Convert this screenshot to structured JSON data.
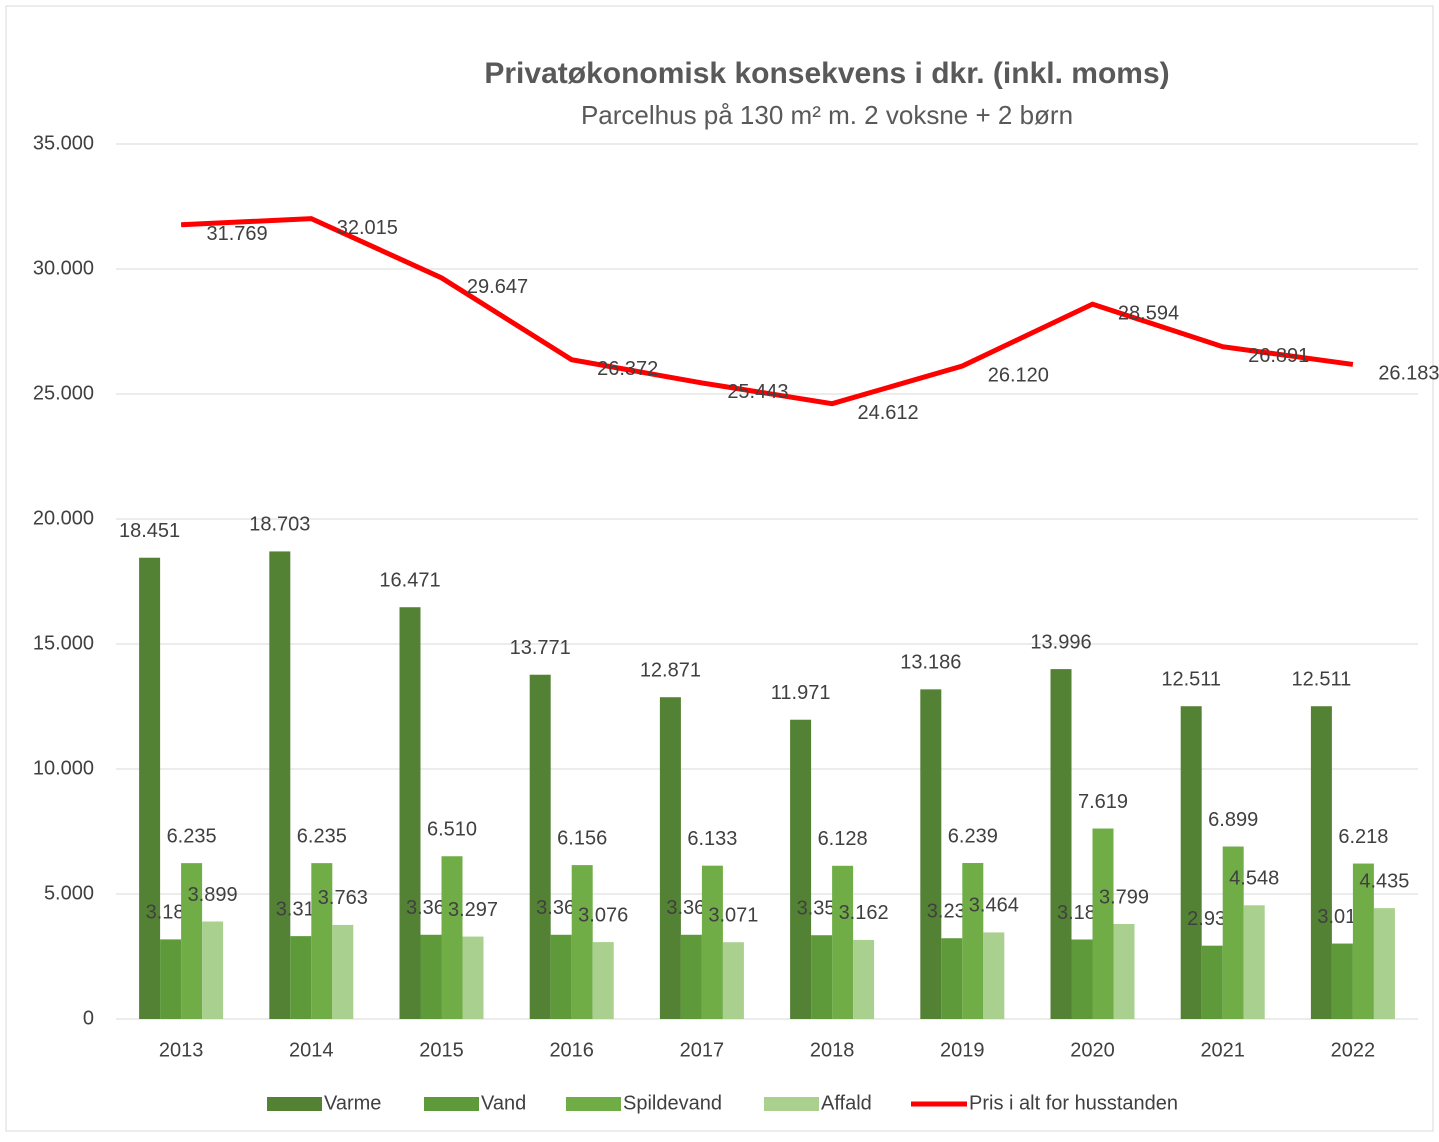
{
  "chart_data": {
    "type": "bar_line",
    "title": "Privatøkonomisk konsekvens i dkr. (inkl. moms)",
    "subtitle": "Parcelhus på 130 m² m. 2 voksne + 2 børn",
    "categories": [
      "2013",
      "2014",
      "2015",
      "2016",
      "2017",
      "2018",
      "2019",
      "2020",
      "2021",
      "2022"
    ],
    "series": [
      {
        "name": "Varme",
        "type": "bar",
        "color": "#548235",
        "values": [
          18451,
          18703,
          16471,
          13771,
          12871,
          11971,
          13186,
          13996,
          12511,
          12511
        ],
        "value_labels": [
          "18.451",
          "18.703",
          "16.471",
          "13.771",
          "12.871",
          "11.971",
          "13.186",
          "13.996",
          "12.511",
          "12.511"
        ]
      },
      {
        "name": "Vand",
        "type": "bar",
        "color": "#5e9a3a",
        "values": [
          3184,
          3315,
          3369,
          3369,
          3369,
          3351,
          3231,
          3180,
          2933,
          3018
        ],
        "value_labels": [
          "3.184",
          "3.315",
          "3.369",
          "3.369",
          "3.369",
          "3.351",
          "3.231",
          "3.180",
          "2.933",
          "3.018"
        ]
      },
      {
        "name": "Spildevand",
        "type": "bar",
        "color": "#70ad47",
        "values": [
          6235,
          6235,
          6510,
          6156,
          6133,
          6128,
          6239,
          7619,
          6899,
          6218
        ],
        "value_labels": [
          "6.235",
          "6.235",
          "6.510",
          "6.156",
          "6.133",
          "6.128",
          "6.239",
          "7.619",
          "6.899",
          "6.218"
        ]
      },
      {
        "name": "Affald",
        "type": "bar",
        "color": "#a9d08e",
        "values": [
          3899,
          3763,
          3297,
          3076,
          3071,
          3162,
          3464,
          3799,
          4548,
          4435
        ],
        "value_labels": [
          "3.899",
          "3.763",
          "3.297",
          "3.076",
          "3.071",
          "3.162",
          "3.464",
          "3.799",
          "4.548",
          "4.435"
        ]
      },
      {
        "name": "Pris i alt for husstanden",
        "type": "line",
        "color": "#ff0000",
        "values": [
          31769,
          32015,
          29647,
          26372,
          25443,
          24612,
          26120,
          28594,
          26891,
          26183
        ],
        "value_labels": [
          "31.769",
          "32.015",
          "29.647",
          "26.372",
          "25.443",
          "24.612",
          "26.120",
          "28.594",
          "26.891",
          "26.183"
        ]
      }
    ],
    "ylim": [
      0,
      35000
    ],
    "yticks": [
      0,
      {
        "value": 5000,
        "label": "5.000"
      },
      {
        "value": 10000,
        "label": "10.000"
      },
      {
        "value": 15000,
        "label": "15.000"
      },
      {
        "value": 20000,
        "label": "20.000"
      },
      {
        "value": 25000,
        "label": "25.000"
      },
      {
        "value": 30000,
        "label": "30.000"
      },
      {
        "value": 35000,
        "label": "35.000"
      }
    ],
    "grid": true,
    "legend": "bottom"
  }
}
